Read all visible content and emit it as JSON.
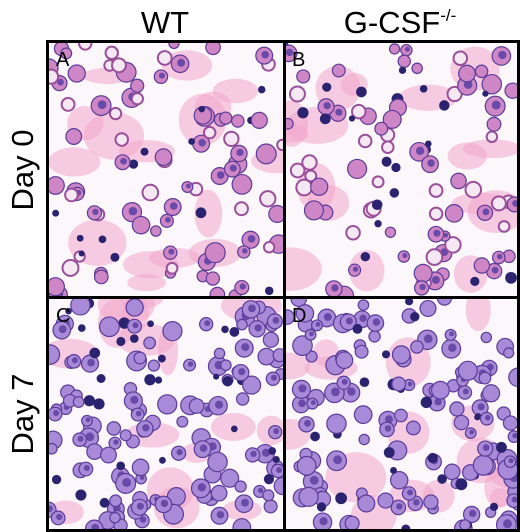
{
  "columns": [
    {
      "label": "WT"
    },
    {
      "label": "G-CSF",
      "superscript": "-/-"
    }
  ],
  "rows": [
    {
      "label": "Day 0"
    },
    {
      "label": "Day 7"
    }
  ],
  "panels": [
    {
      "letter": "A"
    },
    {
      "letter": "B"
    },
    {
      "letter": "C"
    },
    {
      "letter": "D"
    }
  ]
}
